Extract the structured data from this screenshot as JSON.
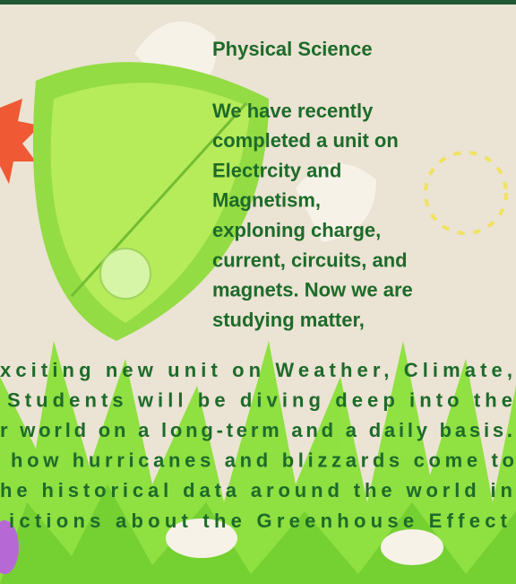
{
  "section": {
    "title": "Physical Science",
    "upper_lines": [
      "We have recently",
      "completed a unit on",
      "Electrcity and",
      "Magnetism,",
      "exploning charge,",
      "current, circuits, and",
      "magnets. Now we are",
      "studying matter,"
    ],
    "lower_lines": [
      "xciting new unit on Weather, Climate,",
      "Students will be diving deep into the",
      "r world on a long-term and a daily basis.",
      "how hurricanes and blizzards come to",
      "he historical data around the world in",
      "ictions about the Greenhouse Effect"
    ]
  }
}
